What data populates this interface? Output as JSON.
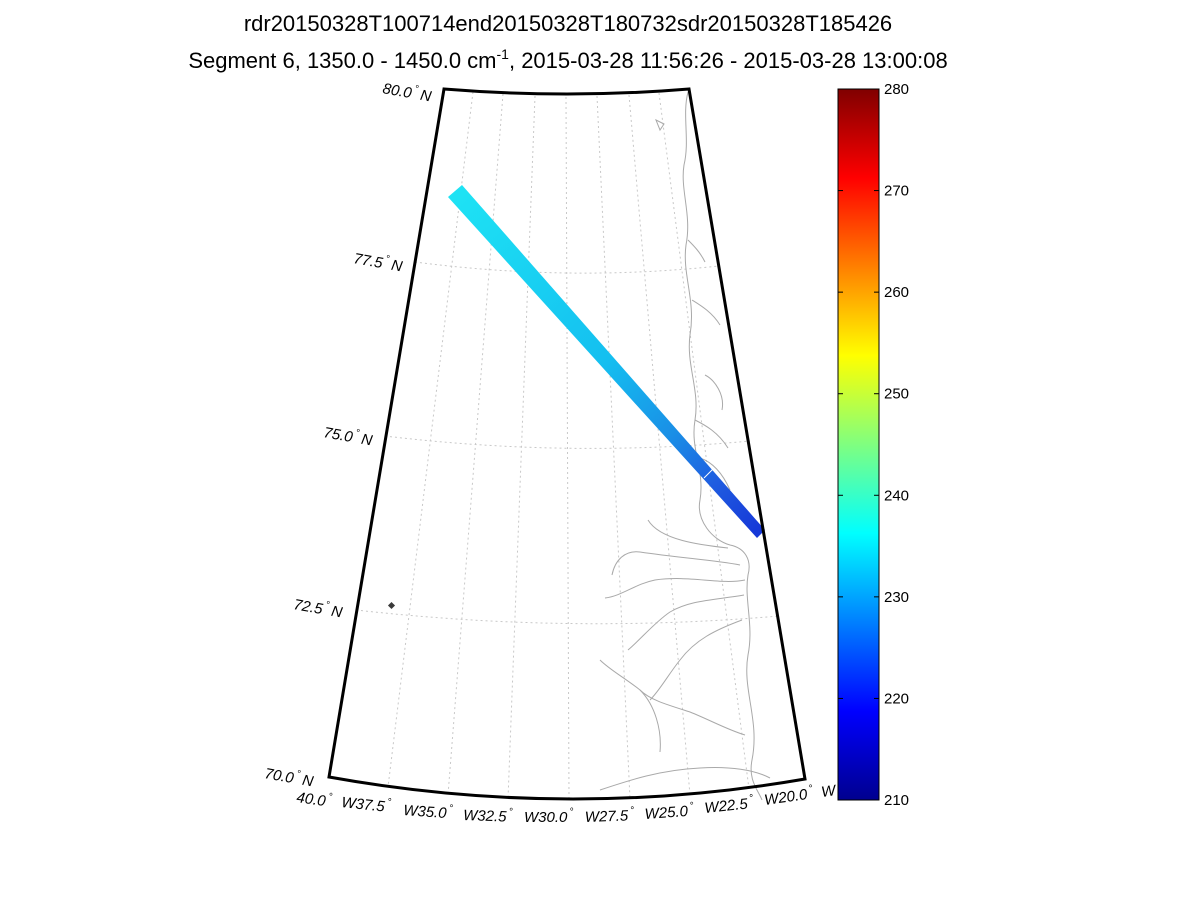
{
  "chart_data": {
    "type": "heatmap",
    "title_line1": "rdr20150328T100714end20150328T180732sdr20150328T185426",
    "title_line2_pre": "Segment 6, 1350.0 - 1450.0 cm",
    "title_line2_sup": "-1",
    "title_line2_post": ", 2015-03-28 11:56:26 - 2015-03-28 13:00:08",
    "projection": "polar-stereographic map, Greenland east coast",
    "lat_range": [
      70.0,
      80.0
    ],
    "lon_range": [
      -40.0,
      -20.0
    ],
    "lat_labels": [
      "80.0",
      "77.5",
      "75.0",
      "72.5",
      "70.0"
    ],
    "lat_suffix": "N",
    "lon_labels": [
      "40.0",
      "W37.5",
      "W35.0",
      "W32.5",
      "W30.0",
      "W27.5",
      "W25.0",
      "W22.5",
      "W20.0",
      "W"
    ],
    "colorbar": {
      "min": 210,
      "max": 280,
      "ticks": [
        "280",
        "270",
        "260",
        "250",
        "240",
        "230",
        "220",
        "210"
      ],
      "colormap": "jet"
    },
    "swath": {
      "start": {
        "lat": 78.3,
        "lon": -37.5
      },
      "end": {
        "lat": 73.7,
        "lon": -20.3
      },
      "value_range": [
        218,
        235
      ]
    }
  }
}
